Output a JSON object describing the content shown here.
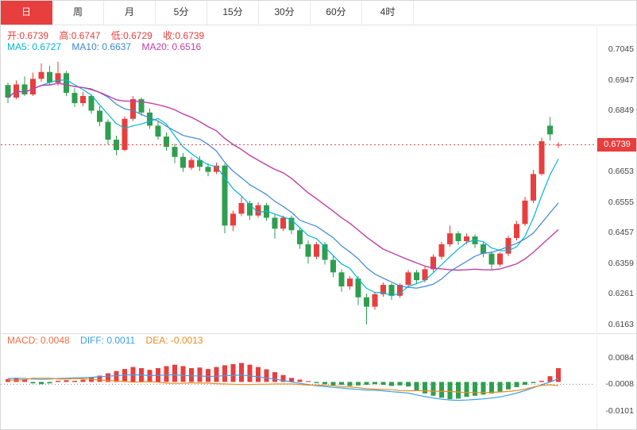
{
  "colors": {
    "accent": "#e83e3e",
    "up": "#e83e3e",
    "down": "#2f9e50",
    "ma5": "#00b7d4",
    "ma10": "#3b86d6",
    "ma20": "#bf3fa6",
    "diff": "#3aa0e8",
    "dea": "#ef8b1e",
    "macd_text": "#ee6f42"
  },
  "tabs": {
    "items": [
      {
        "label": "日",
        "active": true
      },
      {
        "label": "周",
        "active": false
      },
      {
        "label": "月",
        "active": false
      },
      {
        "label": "5分",
        "active": false
      },
      {
        "label": "15分",
        "active": false
      },
      {
        "label": "30分",
        "active": false
      },
      {
        "label": "60分",
        "active": false
      },
      {
        "label": "4时",
        "active": false
      }
    ]
  },
  "legend": {
    "ohlc": {
      "open": "开:0.6739",
      "high": "高:0.6747",
      "low": "低:0.6729",
      "close": "收:0.6739"
    },
    "ma": {
      "ma5": "MA5: 0.6727",
      "ma10": "MA10: 0.6637",
      "ma20": "MA20: 0.6516"
    }
  },
  "price_axis": {
    "labels": [
      "0.7045",
      "0.6947",
      "0.6849",
      "0.6653",
      "0.6555",
      "0.6457",
      "0.6359",
      "0.6261",
      "0.6163"
    ],
    "current": "0.6739"
  },
  "macd_panel": {
    "macd": "MACD: 0.0048",
    "diff": "DIFF: 0.0011",
    "dea": "DEA: -0.0013",
    "axis_labels": [
      "0.0084",
      "-0.0008",
      "-0.0101"
    ]
  },
  "chart_data": [
    {
      "type": "candlestick",
      "timeframe": "日",
      "ohlc_current": {
        "open": 0.6739,
        "high": 0.6747,
        "low": 0.6729,
        "close": 0.6739
      },
      "ma_values": {
        "MA5": 0.6727,
        "MA10": 0.6637,
        "MA20": 0.6516
      },
      "current_price": 0.6739,
      "y_axis": {
        "min": 0.6163,
        "max": 0.7045,
        "tick_step": 0.0098
      },
      "candles": [
        [
          0.693,
          0.6938,
          0.6872,
          0.689
        ],
        [
          0.689,
          0.6945,
          0.6885,
          0.6932
        ],
        [
          0.6932,
          0.6958,
          0.6895,
          0.69
        ],
        [
          0.69,
          0.697,
          0.6895,
          0.695
        ],
        [
          0.695,
          0.7,
          0.694,
          0.6972
        ],
        [
          0.6972,
          0.6992,
          0.693,
          0.6938
        ],
        [
          0.6938,
          0.7005,
          0.6928,
          0.6968
        ],
        [
          0.6968,
          0.6975,
          0.6895,
          0.6905
        ],
        [
          0.6905,
          0.692,
          0.686,
          0.6872
        ],
        [
          0.6872,
          0.6908,
          0.6862,
          0.6895
        ],
        [
          0.6895,
          0.69,
          0.6838,
          0.6848
        ],
        [
          0.6848,
          0.6862,
          0.6798,
          0.6812
        ],
        [
          0.6812,
          0.682,
          0.674,
          0.6755
        ],
        [
          0.6755,
          0.6768,
          0.6705,
          0.6722
        ],
        [
          0.6722,
          0.683,
          0.6718,
          0.6822
        ],
        [
          0.6822,
          0.6895,
          0.6815,
          0.6885
        ],
        [
          0.6885,
          0.689,
          0.6832,
          0.6842
        ],
        [
          0.6842,
          0.6855,
          0.679,
          0.68
        ],
        [
          0.68,
          0.6815,
          0.6755,
          0.6765
        ],
        [
          0.6765,
          0.6778,
          0.672,
          0.6732
        ],
        [
          0.6732,
          0.6742,
          0.668,
          0.67
        ],
        [
          0.67,
          0.6712,
          0.6652,
          0.6665
        ],
        [
          0.6665,
          0.6698,
          0.6658,
          0.669
        ],
        [
          0.669,
          0.6702,
          0.6655,
          0.6668
        ],
        [
          0.6668,
          0.668,
          0.6638,
          0.6652
        ],
        [
          0.6652,
          0.6682,
          0.6645,
          0.6672
        ],
        [
          0.6672,
          0.6678,
          0.6455,
          0.648
        ],
        [
          0.648,
          0.6528,
          0.6462,
          0.6518
        ],
        [
          0.6518,
          0.6572,
          0.651,
          0.6552
        ],
        [
          0.6552,
          0.656,
          0.6498,
          0.6512
        ],
        [
          0.6512,
          0.6555,
          0.6505,
          0.6545
        ],
        [
          0.6545,
          0.6552,
          0.6495,
          0.6505
        ],
        [
          0.6505,
          0.6515,
          0.6438,
          0.647
        ],
        [
          0.647,
          0.6512,
          0.6462,
          0.6505
        ],
        [
          0.6505,
          0.6512,
          0.6452,
          0.6465
        ],
        [
          0.6465,
          0.6475,
          0.6405,
          0.642
        ],
        [
          0.642,
          0.6432,
          0.6358,
          0.638
        ],
        [
          0.638,
          0.6428,
          0.6372,
          0.642
        ],
        [
          0.642,
          0.6428,
          0.6355,
          0.637
        ],
        [
          0.637,
          0.6382,
          0.6315,
          0.633
        ],
        [
          0.633,
          0.634,
          0.6268,
          0.6285
        ],
        [
          0.6285,
          0.6318,
          0.6275,
          0.631
        ],
        [
          0.631,
          0.6318,
          0.6225,
          0.625
        ],
        [
          0.625,
          0.6262,
          0.6163,
          0.622
        ],
        [
          0.622,
          0.6268,
          0.621,
          0.626
        ],
        [
          0.626,
          0.6298,
          0.6252,
          0.629
        ],
        [
          0.629,
          0.6295,
          0.6242,
          0.6255
        ],
        [
          0.6255,
          0.6295,
          0.6248,
          0.629
        ],
        [
          0.629,
          0.6338,
          0.6282,
          0.633
        ],
        [
          0.633,
          0.6338,
          0.6295,
          0.6305
        ],
        [
          0.6305,
          0.6348,
          0.6298,
          0.634
        ],
        [
          0.634,
          0.6388,
          0.6332,
          0.638
        ],
        [
          0.638,
          0.6428,
          0.6372,
          0.642
        ],
        [
          0.642,
          0.648,
          0.6412,
          0.6455
        ],
        [
          0.6455,
          0.6462,
          0.6418,
          0.643
        ],
        [
          0.643,
          0.6455,
          0.642,
          0.6445
        ],
        [
          0.6445,
          0.6452,
          0.6408,
          0.642
        ],
        [
          0.642,
          0.6428,
          0.6378,
          0.639
        ],
        [
          0.639,
          0.6398,
          0.634,
          0.6355
        ],
        [
          0.6355,
          0.6395,
          0.6348,
          0.639
        ],
        [
          0.639,
          0.6448,
          0.6382,
          0.644
        ],
        [
          0.644,
          0.6495,
          0.6432,
          0.6485
        ],
        [
          0.6485,
          0.6572,
          0.6478,
          0.656
        ],
        [
          0.656,
          0.6658,
          0.6552,
          0.6645
        ],
        [
          0.6645,
          0.6762,
          0.664,
          0.675
        ],
        [
          0.68,
          0.6828,
          0.6752,
          0.6772
        ],
        [
          0.6739,
          0.6747,
          0.6729,
          0.6739
        ]
      ]
    },
    {
      "type": "bar",
      "name": "MACD",
      "current_values": {
        "MACD": 0.0048,
        "DIFF": 0.0011,
        "DEA": -0.0013
      },
      "y_axis": {
        "min": -0.0101,
        "max": 0.0084
      },
      "histogram": [
        0.001,
        0.0014,
        0.0008,
        -0.0005,
        -0.0008,
        -0.0005,
        0.0004,
        0.0006,
        0.0004,
        0.0008,
        0.0015,
        0.0022,
        0.003,
        0.0038,
        0.0045,
        0.0052,
        0.0048,
        0.0042,
        0.0048,
        0.0055,
        0.006,
        0.0055,
        0.0048,
        0.005,
        0.0045,
        0.0052,
        0.0058,
        0.0062,
        0.0066,
        0.006,
        0.0052,
        0.0044,
        0.0034,
        0.0024,
        0.0014,
        0.0008,
        0.0003,
        -0.0004,
        -0.0008,
        -0.0012,
        -0.001,
        -0.0014,
        -0.0012,
        -0.001,
        -0.0008,
        -0.001,
        -0.0014,
        -0.0012,
        -0.0016,
        -0.003,
        -0.004,
        -0.0048,
        -0.0055,
        -0.006,
        -0.0058,
        -0.0052,
        -0.0048,
        -0.0044,
        -0.004,
        -0.0034,
        -0.0026,
        -0.0018,
        -0.001,
        -0.0004,
        0.0004,
        0.002,
        0.0048
      ],
      "diff": [
        0.0012,
        0.0013,
        0.0012,
        0.001,
        0.0009,
        0.001,
        0.0012,
        0.0013,
        0.0014,
        0.0015,
        0.0016,
        0.0018,
        0.002,
        0.0022,
        0.0024,
        0.0025,
        0.0024,
        0.0022,
        0.0023,
        0.0024,
        0.0025,
        0.0023,
        0.0021,
        0.0021,
        0.0019,
        0.002,
        0.0022,
        0.0023,
        0.0024,
        0.0021,
        0.0018,
        0.0014,
        0.001,
        0.0005,
        0.0,
        -0.0005,
        -0.0009,
        -0.0013,
        -0.0016,
        -0.0019,
        -0.0021,
        -0.0024,
        -0.0026,
        -0.0028,
        -0.0029,
        -0.0031,
        -0.0034,
        -0.0036,
        -0.0039,
        -0.0045,
        -0.0051,
        -0.0056,
        -0.006,
        -0.0063,
        -0.0064,
        -0.0063,
        -0.0061,
        -0.0059,
        -0.0056,
        -0.0052,
        -0.0046,
        -0.0039,
        -0.003,
        -0.002,
        -0.001,
        0.0,
        0.0011
      ],
      "dea": [
        0.0007,
        0.0006,
        0.0008,
        0.0013,
        0.0013,
        0.0013,
        0.001,
        0.001,
        0.0012,
        0.0011,
        0.0009,
        0.0007,
        0.0005,
        0.0003,
        0.0002,
        -0.0001,
        0.0,
        0.0001,
        -0.0001,
        -0.0004,
        -0.0005,
        -0.0005,
        -0.0003,
        -0.0004,
        -0.0004,
        -0.0006,
        -0.0007,
        -0.0008,
        -0.0009,
        -0.0009,
        -0.0008,
        -0.0008,
        -0.0007,
        -0.0007,
        -0.0007,
        -0.0009,
        -0.0011,
        -0.0011,
        -0.0012,
        -0.0013,
        -0.0016,
        -0.0017,
        -0.002,
        -0.0023,
        -0.0025,
        -0.0026,
        -0.0027,
        -0.003,
        -0.0031,
        -0.003,
        -0.0031,
        -0.0032,
        -0.0033,
        -0.0033,
        -0.0035,
        -0.0037,
        -0.0037,
        -0.0037,
        -0.0036,
        -0.0035,
        -0.0033,
        -0.003,
        -0.0025,
        -0.0018,
        -0.0012,
        -0.001,
        -0.0013
      ]
    }
  ]
}
